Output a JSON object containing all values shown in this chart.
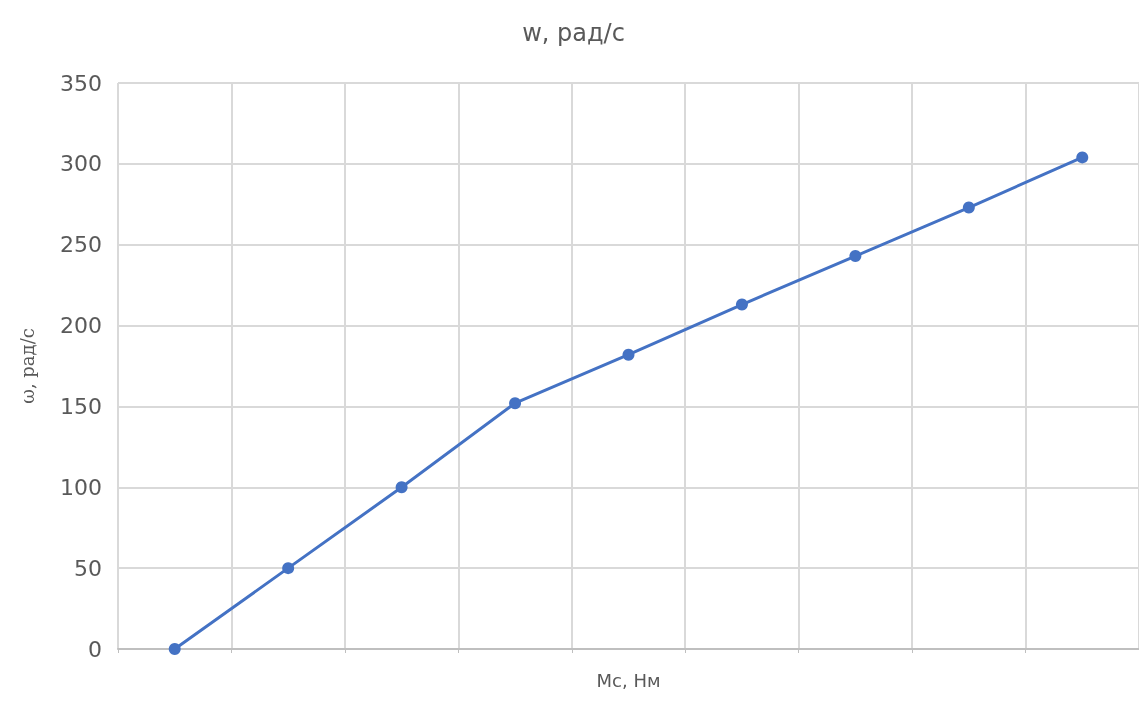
{
  "chart_data": {
    "type": "line",
    "title": "w, рад/с",
    "xlabel": "Мс, Нм",
    "ylabel": "ω, рад/с",
    "categories": [
      null,
      null,
      null,
      null,
      null,
      null,
      null,
      null,
      null
    ],
    "series": [
      {
        "color": "#4472c4",
        "values": [
          0,
          50,
          100,
          152,
          182,
          213,
          243,
          273,
          304
        ]
      }
    ],
    "ylim": [
      0,
      350
    ],
    "yticks": [
      0,
      50,
      100,
      150,
      200,
      250,
      300,
      350
    ],
    "grid": true,
    "tick_labels": "y",
    "marker": "circle",
    "line_style": "solid"
  }
}
